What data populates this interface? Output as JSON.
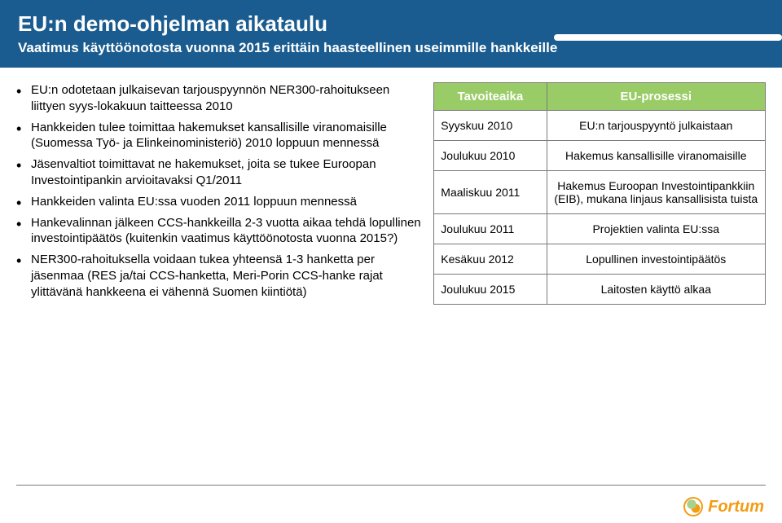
{
  "header": {
    "title": "EU:n demo-ohjelman aikataulu",
    "subtitle": "Vaatimus käyttöönotosta vuonna 2015 erittäin haasteellinen useimmille hankkeille"
  },
  "bullets": [
    "EU:n odotetaan julkaisevan tarjouspyynnön NER300-rahoitukseen liittyen syys-lokakuun taitteessa 2010",
    "Hankkeiden tulee toimittaa hakemukset kansallisille viranomaisille (Suomessa Työ- ja Elinkeinoministeriö) 2010 loppuun mennessä",
    "Jäsenvaltiot toimittavat ne hakemukset, joita se tukee Euroopan Investointipankin arvioitavaksi Q1/2011",
    "Hankkeiden valinta EU:ssa vuoden 2011 loppuun mennessä",
    "Hankevalinnan jälkeen CCS-hankkeilla 2-3 vuotta aikaa tehdä lopullinen investointipäätös (kuitenkin vaatimus käyttöönotosta vuonna 2015?)",
    "NER300-rahoituksella voidaan tukea yhteensä 1-3 hanketta per jäsenmaa (RES ja/tai CCS-hanketta, Meri-Porin CCS-hanke rajat ylittävänä hankkeena ei vähennä Suomen kiintiötä)"
  ],
  "table": {
    "headers": [
      "Tavoiteaika",
      "EU-prosessi"
    ],
    "rows": [
      [
        "Syyskuu 2010",
        "EU:n tarjouspyyntö julkaistaan"
      ],
      [
        "Joulukuu 2010",
        "Hakemus kansallisille viranomaisille"
      ],
      [
        "Maaliskuu 2011",
        "Hakemus Euroopan Investointipankkiin (EIB), mukana linjaus kansallisista tuista"
      ],
      [
        "Joulukuu 2011",
        "Projektien valinta EU:ssa"
      ],
      [
        "Kesäkuu 2012",
        "Lopullinen investointipäätös"
      ],
      [
        "Joulukuu 2015",
        "Laitosten käyttö alkaa"
      ]
    ]
  },
  "logo": {
    "text": "Fortum"
  }
}
